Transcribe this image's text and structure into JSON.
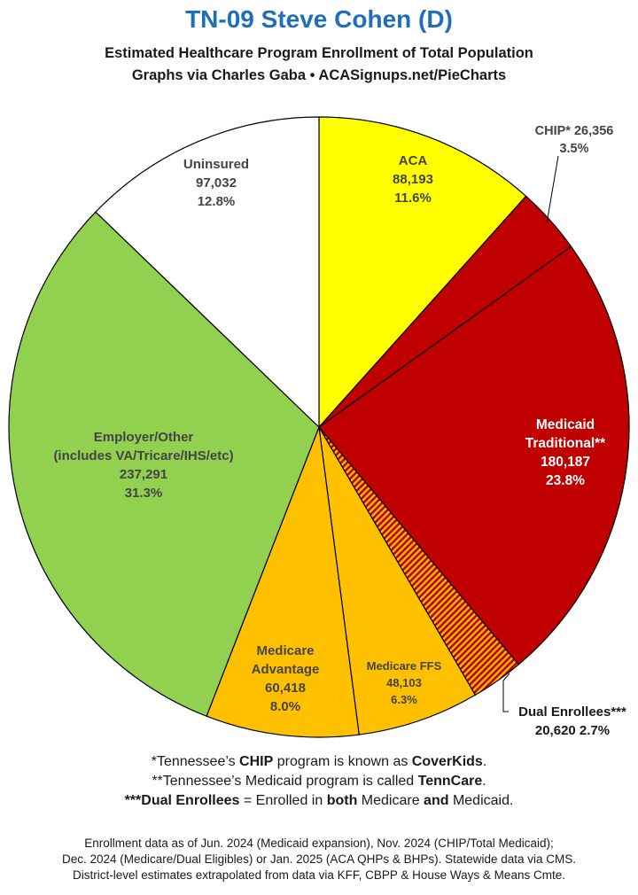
{
  "header": {
    "title": "TN-09 Steve Cohen (D)",
    "subtitle_line1": "Estimated Healthcare Program Enrollment of Total Population",
    "subtitle_line2": "Graphs via Charles Gaba  •  ACASignups.net/PieCharts"
  },
  "chart_data": {
    "type": "pie",
    "title": "TN-09 Steve Cohen (D)",
    "subtitle": "Estimated Healthcare Program Enrollment of Total Population",
    "slices": [
      {
        "key": "aca",
        "label": "ACA",
        "value": 88193,
        "value_text": "88,193",
        "percent": "11.6%",
        "color": "#ffff00",
        "label_color": "#444444"
      },
      {
        "key": "chip",
        "label": "CHIP*",
        "value": 26356,
        "value_text": "26,356",
        "percent": "3.5%",
        "color": "#c00000",
        "label_color": "#444444"
      },
      {
        "key": "medicaid",
        "label": "Medicaid Traditional**",
        "value": 180187,
        "value_text": "180,187",
        "percent": "23.8%",
        "color": "#c00000",
        "label_color": "#ffffff"
      },
      {
        "key": "dual",
        "label": "Dual Enrollees***",
        "value": 20620,
        "value_text": "20,620",
        "percent": "2.7%",
        "color": "#ffc000",
        "hatch_color": "#c00000",
        "label_color": "#1a1a1a"
      },
      {
        "key": "medicare_ffs",
        "label": "Medicare FFS",
        "value": 48103,
        "value_text": "48,103",
        "percent": "6.3%",
        "color": "#ffc000",
        "label_color": "#444444"
      },
      {
        "key": "medicare_adv",
        "label": "Medicare Advantage",
        "value": 60418,
        "value_text": "60,418",
        "percent": "8.0%",
        "color": "#ffc000",
        "label_color": "#444444"
      },
      {
        "key": "employer",
        "label": "Employer/Other (includes VA/Tricare/IHS/etc)",
        "value": 237291,
        "value_text": "237,291",
        "percent": "31.3%",
        "color": "#92d050",
        "label_color": "#444444"
      },
      {
        "key": "uninsured",
        "label": "Uninsured",
        "value": 97032,
        "value_text": "97,032",
        "percent": "12.8%",
        "color": "#ffffff",
        "label_color": "#444444"
      }
    ]
  },
  "labels": {
    "aca": {
      "l1": "ACA",
      "l2": "88,193",
      "l3": "11.6%"
    },
    "chip": {
      "l1": "CHIP* 26,356",
      "l2": "3.5%"
    },
    "medicaid": {
      "l1": "Medicaid",
      "l2": "Traditional**",
      "l3": "180,187",
      "l4": "23.8%"
    },
    "dual": {
      "l1": "Dual Enrollees***",
      "l2": "20,620 2.7%"
    },
    "medicare_ffs": {
      "l1": "Medicare FFS",
      "l2": "48,103",
      "l3": "6.3%"
    },
    "medicare_adv": {
      "l1": "Medicare",
      "l2": "Advantage",
      "l3": "60,418",
      "l4": "8.0%"
    },
    "employer": {
      "l1": "Employer/Other",
      "l2": "(includes VA/Tricare/IHS/etc)",
      "l3": "237,291",
      "l4": "31.3%"
    },
    "uninsured": {
      "l1": "Uninsured",
      "l2": "97,032",
      "l3": "12.8%"
    }
  },
  "notes": {
    "n1_a": "*Tennessee’s ",
    "n1_b": "CHIP",
    "n1_c": " program is known as ",
    "n1_d": "CoverKids",
    "n1_e": ".",
    "n2_a": "**Tennessee’s Medicaid program is called ",
    "n2_b": "TennCare",
    "n2_c": ".",
    "n3_a": "***Dual Enrollees",
    "n3_b": " = Enrolled in ",
    "n3_c": "both",
    "n3_d": " Medicare ",
    "n3_e": "and",
    "n3_f": " Medicaid."
  },
  "source": {
    "line1": "Enrollment data as of Jun. 2024 (Medicaid expansion), Nov. 2024 (CHIP/Total Medicaid);",
    "line2": "Dec. 2024 (Medicare/Dual Eligibles) or Jan. 2025 (ACA QHPs & BHPs). Statewide data via CMS.",
    "line3": "District-level estimates extrapolated from data via KFF, CBPP & House Ways & Means Cmte."
  }
}
